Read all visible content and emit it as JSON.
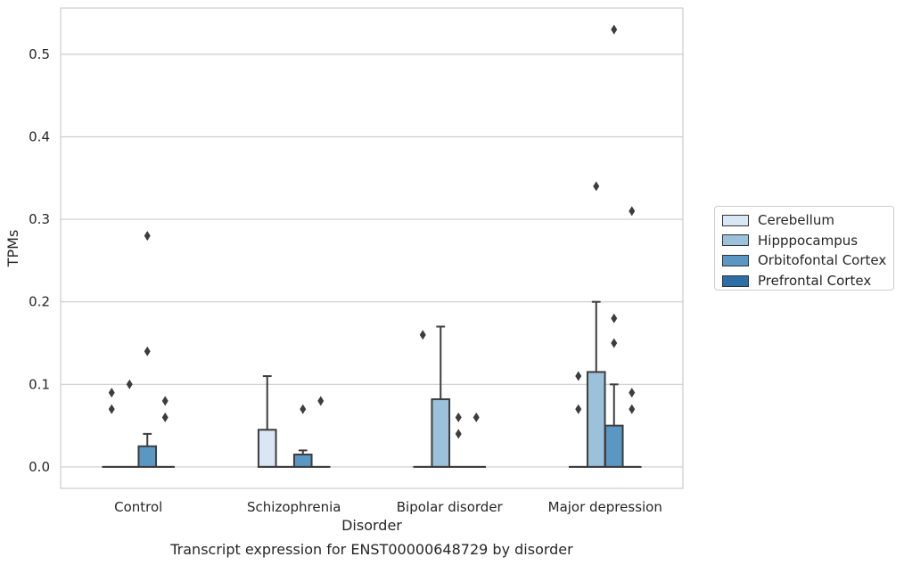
{
  "chart_data": {
    "type": "box",
    "caption": "Transcript expression for ENST00000648729 by disorder",
    "xlabel": "Disorder",
    "ylabel": "TPMs",
    "ylim": [
      -0.026,
      0.556
    ],
    "yticks": [
      0.0,
      0.1,
      0.2,
      0.3,
      0.4,
      0.5
    ],
    "ytick_labels": [
      "0.0",
      "0.1",
      "0.2",
      "0.3",
      "0.4",
      "0.5"
    ],
    "grid": "horizontal",
    "legend_position": "right",
    "categories": [
      "Control",
      "Schizophrenia",
      "Bipolar disorder",
      "Major depression"
    ],
    "series": [
      {
        "name": "Cerebellum",
        "color": "#d9e6f3",
        "boxes": [
          {
            "q1": 0,
            "median": 0,
            "q3": 0,
            "whisker_low": 0,
            "whisker_high": 0,
            "outliers": [
              0.07,
              0.09
            ]
          },
          {
            "q1": 0,
            "median": 0,
            "q3": 0.045,
            "whisker_low": 0,
            "whisker_high": 0.11,
            "outliers": []
          },
          {
            "q1": 0,
            "median": 0,
            "q3": 0,
            "whisker_low": 0,
            "whisker_high": 0,
            "outliers": [
              0.16
            ]
          },
          {
            "q1": 0,
            "median": 0,
            "q3": 0,
            "whisker_low": 0,
            "whisker_high": 0,
            "outliers": [
              0.07,
              0.11
            ]
          }
        ]
      },
      {
        "name": "Hipppocampus",
        "color": "#9bc2da",
        "boxes": [
          {
            "q1": 0,
            "median": 0,
            "q3": 0,
            "whisker_low": 0,
            "whisker_high": 0,
            "outliers": [
              0.1
            ]
          },
          {
            "q1": 0,
            "median": 0,
            "q3": 0,
            "whisker_low": 0,
            "whisker_high": 0,
            "outliers": []
          },
          {
            "q1": 0,
            "median": 0,
            "q3": 0.082,
            "whisker_low": 0,
            "whisker_high": 0.17,
            "outliers": []
          },
          {
            "q1": 0,
            "median": 0,
            "q3": 0.115,
            "whisker_low": 0,
            "whisker_high": 0.2,
            "outliers": [
              0.34
            ]
          }
        ]
      },
      {
        "name": "Orbitofontal Cortex",
        "color": "#5b97c3",
        "boxes": [
          {
            "q1": 0,
            "median": 0,
            "q3": 0.025,
            "whisker_low": 0,
            "whisker_high": 0.04,
            "outliers": [
              0.14,
              0.28
            ]
          },
          {
            "q1": 0,
            "median": 0,
            "q3": 0.015,
            "whisker_low": 0,
            "whisker_high": 0.02,
            "outliers": [
              0.07
            ]
          },
          {
            "q1": 0,
            "median": 0,
            "q3": 0,
            "whisker_low": 0,
            "whisker_high": 0,
            "outliers": [
              0.04,
              0.06
            ]
          },
          {
            "q1": 0,
            "median": 0,
            "q3": 0.05,
            "whisker_low": 0,
            "whisker_high": 0.1,
            "outliers": [
              0.15,
              0.18,
              0.53
            ]
          }
        ]
      },
      {
        "name": "Prefrontal Cortex",
        "color": "#2c6ea6",
        "boxes": [
          {
            "q1": 0,
            "median": 0,
            "q3": 0,
            "whisker_low": 0,
            "whisker_high": 0,
            "outliers": [
              0.06,
              0.08
            ]
          },
          {
            "q1": 0,
            "median": 0,
            "q3": 0,
            "whisker_low": 0,
            "whisker_high": 0,
            "outliers": [
              0.08
            ]
          },
          {
            "q1": 0,
            "median": 0,
            "q3": 0,
            "whisker_low": 0,
            "whisker_high": 0,
            "outliers": [
              0.06
            ]
          },
          {
            "q1": 0,
            "median": 0,
            "q3": 0,
            "whisker_low": 0,
            "whisker_high": 0,
            "outliers": [
              0.07,
              0.09,
              0.31
            ]
          }
        ]
      }
    ]
  }
}
